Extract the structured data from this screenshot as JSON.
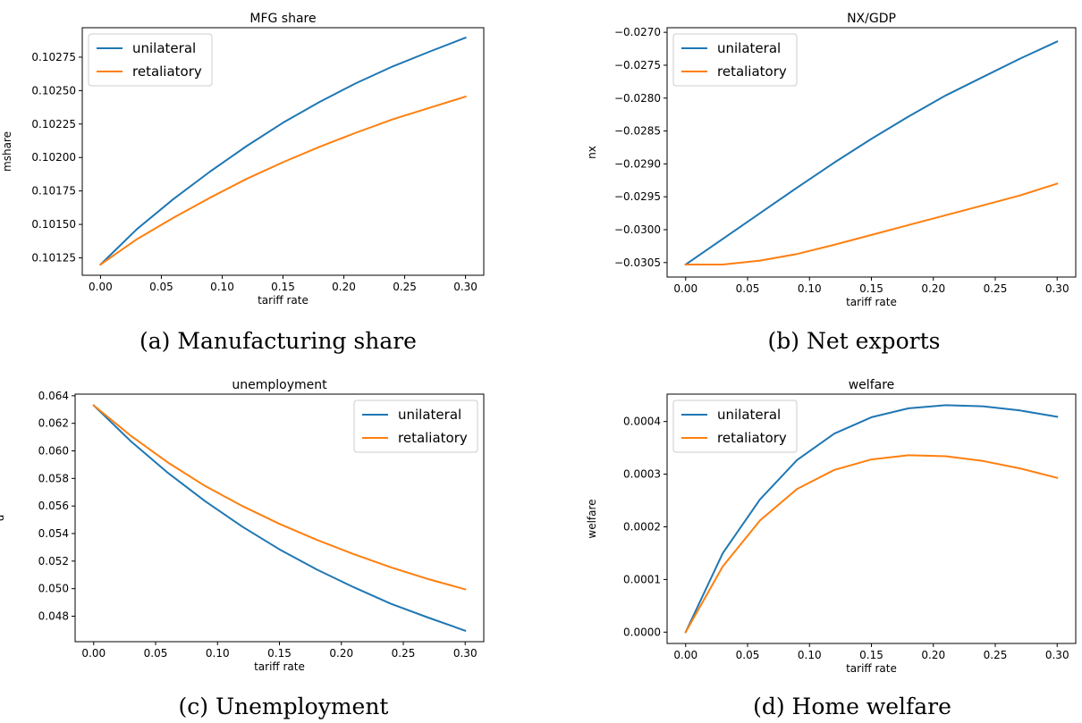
{
  "figure": {
    "panels": [
      {
        "caption": "(a) Manufacturing share"
      },
      {
        "caption": "(b) Net exports"
      },
      {
        "caption": "(c) Unemployment"
      },
      {
        "caption": "(d) Home welfare"
      }
    ]
  },
  "chart_data": [
    {
      "type": "line",
      "title": "MFG share",
      "xlabel": "tariff rate",
      "ylabel": "mshare",
      "x": [
        0.0,
        0.03,
        0.06,
        0.09,
        0.12,
        0.15,
        0.18,
        0.21,
        0.24,
        0.27,
        0.3
      ],
      "xlim": [
        -0.015,
        0.315
      ],
      "ylim": [
        0.10112,
        0.10297
      ],
      "xticks": [
        0.0,
        0.05,
        0.1,
        0.15,
        0.2,
        0.25,
        0.3
      ],
      "xtick_labels": [
        "0.00",
        "0.05",
        "0.10",
        "0.15",
        "0.20",
        "0.25",
        "0.30"
      ],
      "yticks": [
        0.10125,
        0.1015,
        0.10175,
        0.102,
        0.10225,
        0.1025,
        0.10275
      ],
      "ytick_labels": [
        "0.10125",
        "0.10150",
        "0.10175",
        "0.10200",
        "0.10225",
        "0.10250",
        "0.10275"
      ],
      "legend": "upper-left",
      "series": [
        {
          "name": "unilateral",
          "color": "#1f77b4",
          "values": [
            0.1012,
            0.101465,
            0.10169,
            0.101895,
            0.102085,
            0.10226,
            0.102415,
            0.102555,
            0.10268,
            0.10279,
            0.102895
          ]
        },
        {
          "name": "retaliatory",
          "color": "#ff7f0e",
          "values": [
            0.1012,
            0.10139,
            0.10155,
            0.1017,
            0.10184,
            0.101965,
            0.10208,
            0.102185,
            0.102285,
            0.10237,
            0.102455
          ]
        }
      ]
    },
    {
      "type": "line",
      "title": "NX/GDP",
      "xlabel": "tariff rate",
      "ylabel": "nx",
      "x": [
        0.0,
        0.03,
        0.06,
        0.09,
        0.12,
        0.15,
        0.18,
        0.21,
        0.24,
        0.27,
        0.3
      ],
      "xlim": [
        -0.015,
        0.315
      ],
      "ylim": [
        -0.03072,
        -0.02693
      ],
      "xticks": [
        0.0,
        0.05,
        0.1,
        0.15,
        0.2,
        0.25,
        0.3
      ],
      "xtick_labels": [
        "0.00",
        "0.05",
        "0.10",
        "0.15",
        "0.20",
        "0.25",
        "0.30"
      ],
      "yticks": [
        -0.0305,
        -0.03,
        -0.0295,
        -0.029,
        -0.0285,
        -0.028,
        -0.0275,
        -0.027
      ],
      "ytick_labels": [
        "−0.0305",
        "−0.0300",
        "−0.0295",
        "−0.0290",
        "−0.0285",
        "−0.0280",
        "−0.0275",
        "−0.0270"
      ],
      "legend": "upper-left",
      "series": [
        {
          "name": "unilateral",
          "color": "#1f77b4",
          "values": [
            -0.03053,
            -0.03014,
            -0.02975,
            -0.02936,
            -0.02898,
            -0.02862,
            -0.02828,
            -0.02796,
            -0.02768,
            -0.0274,
            -0.02714
          ]
        },
        {
          "name": "retaliatory",
          "color": "#ff7f0e",
          "values": [
            -0.03053,
            -0.03053,
            -0.03047,
            -0.03037,
            -0.03023,
            -0.03008,
            -0.02993,
            -0.02978,
            -0.02963,
            -0.02948,
            -0.0293
          ]
        }
      ]
    },
    {
      "type": "line",
      "title": "unemployment",
      "xlabel": "tariff rate",
      "ylabel": "u",
      "x": [
        0.0,
        0.03,
        0.06,
        0.09,
        0.12,
        0.15,
        0.18,
        0.21,
        0.24,
        0.27,
        0.3
      ],
      "xlim": [
        -0.015,
        0.315
      ],
      "ylim": [
        0.04615,
        0.06412
      ],
      "xticks": [
        0.0,
        0.05,
        0.1,
        0.15,
        0.2,
        0.25,
        0.3
      ],
      "xtick_labels": [
        "0.00",
        "0.05",
        "0.10",
        "0.15",
        "0.20",
        "0.25",
        "0.30"
      ],
      "yticks": [
        0.048,
        0.05,
        0.052,
        0.054,
        0.056,
        0.058,
        0.06,
        0.062,
        0.064
      ],
      "ytick_labels": [
        "0.048",
        "0.050",
        "0.052",
        "0.054",
        "0.056",
        "0.058",
        "0.060",
        "0.062",
        "0.064"
      ],
      "legend": "upper-right",
      "series": [
        {
          "name": "unilateral",
          "color": "#1f77b4",
          "values": [
            0.0633,
            0.0607,
            0.0584,
            0.05635,
            0.0545,
            0.05285,
            0.0514,
            0.0501,
            0.0489,
            0.0479,
            0.04695
          ]
        },
        {
          "name": "retaliatory",
          "color": "#ff7f0e",
          "values": [
            0.0633,
            0.0611,
            0.05915,
            0.05745,
            0.056,
            0.0547,
            0.05355,
            0.0525,
            0.05155,
            0.0507,
            0.04995
          ]
        }
      ]
    },
    {
      "type": "line",
      "title": "welfare",
      "xlabel": "tariff rate",
      "ylabel": "welfare",
      "x": [
        0.0,
        0.03,
        0.06,
        0.09,
        0.12,
        0.15,
        0.18,
        0.21,
        0.24,
        0.27,
        0.3
      ],
      "xlim": [
        -0.015,
        0.315
      ],
      "ylim": [
        -2.15e-05,
        0.000452
      ],
      "xticks": [
        0.0,
        0.05,
        0.1,
        0.15,
        0.2,
        0.25,
        0.3
      ],
      "xtick_labels": [
        "0.00",
        "0.05",
        "0.10",
        "0.15",
        "0.20",
        "0.25",
        "0.30"
      ],
      "yticks": [
        0.0,
        0.0001,
        0.0002,
        0.0003,
        0.0004
      ],
      "ytick_labels": [
        "0.0000",
        "0.0001",
        "0.0002",
        "0.0003",
        "0.0004"
      ],
      "legend": "upper-left",
      "series": [
        {
          "name": "unilateral",
          "color": "#1f77b4",
          "values": [
            0.0,
            0.00015,
            0.000252,
            0.000327,
            0.000377,
            0.000408,
            0.000425,
            0.000431,
            0.000429,
            0.000421,
            0.000409
          ]
        },
        {
          "name": "retaliatory",
          "color": "#ff7f0e",
          "values": [
            0.0,
            0.000125,
            0.000212,
            0.000272,
            0.000308,
            0.000328,
            0.000336,
            0.000334,
            0.000325,
            0.000311,
            0.000293
          ]
        }
      ]
    }
  ]
}
